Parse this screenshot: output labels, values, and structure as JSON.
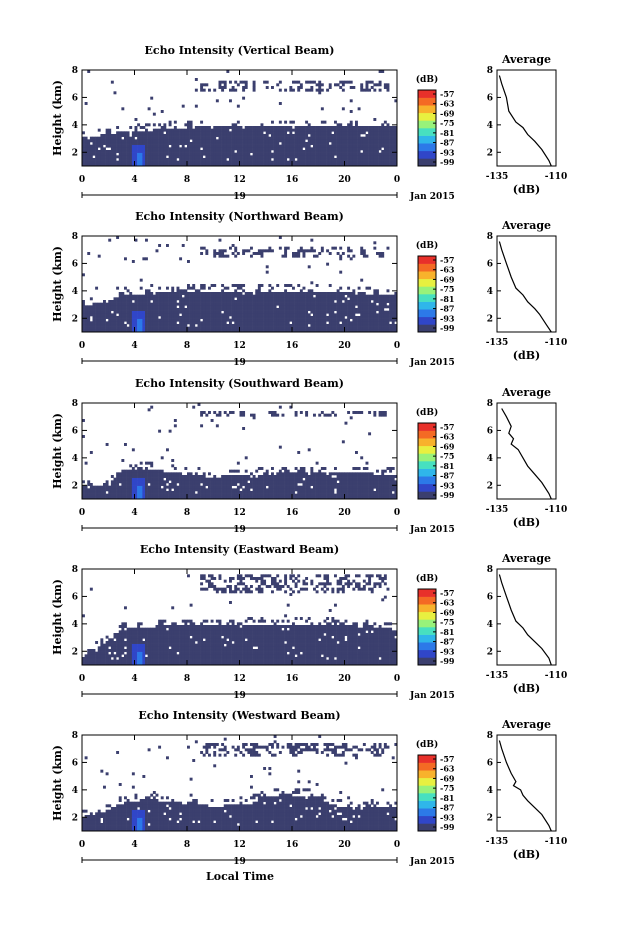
{
  "figure": {
    "xlabel": "Local Time",
    "x_ticks": [
      "0",
      "4",
      "8",
      "12",
      "16",
      "20",
      "0"
    ],
    "day_label": "19",
    "month_label": "Jan 2015",
    "avg_title": "Average",
    "avg_xlabel": "(dB)",
    "avg_x_ticks": [
      "-135",
      "-110"
    ],
    "colorbar_unit": "(dB)",
    "colorbar_ticks": [
      "-57",
      "-63",
      "-69",
      "-75",
      "-81",
      "-87",
      "-93",
      "-99"
    ],
    "colormap": [
      "#3b3f6e",
      "#3046c8",
      "#2c79e8",
      "#2fb6ea",
      "#47e0c0",
      "#98f27a",
      "#e8f040",
      "#f8b22c",
      "#f46a24",
      "#e8302a"
    ],
    "background_echo_color": "#3b3f6e"
  },
  "chart_data": [
    {
      "type": "heatmap",
      "title": "Echo Intensity (Vertical Beam)",
      "ylabel": "Height (km)",
      "xlim": [
        0,
        24
      ],
      "ylim": [
        1,
        8
      ],
      "y_ticks": [
        "2",
        "4",
        "6",
        "8"
      ],
      "echo_top_km": [
        [
          0,
          3.1
        ],
        [
          2,
          3.3
        ],
        [
          3,
          3.5
        ],
        [
          5,
          3.6
        ],
        [
          8,
          3.8
        ],
        [
          12,
          3.9
        ],
        [
          16,
          3.9
        ],
        [
          20,
          3.9
        ],
        [
          24,
          3.9
        ]
      ],
      "upper_echo_band_km": [
        6.4,
        7.3
      ],
      "avg_profile": {
        "ylim": [
          1,
          8
        ],
        "y_ticks": [
          "2",
          "4",
          "6",
          "8"
        ],
        "xlim": [
          -135,
          -110
        ],
        "x": [
          -134,
          -133,
          -131,
          -130,
          -127,
          -124,
          -122,
          -119,
          -116,
          -113,
          -112
        ],
        "y": [
          7.6,
          7.0,
          6.0,
          5.0,
          4.2,
          3.8,
          3.3,
          2.8,
          2.2,
          1.4,
          1.0
        ]
      }
    },
    {
      "type": "heatmap",
      "title": "Echo Intensity (Northward Beam)",
      "ylabel": "Height (km)",
      "xlim": [
        0,
        24
      ],
      "ylim": [
        1,
        8
      ],
      "y_ticks": [
        "2",
        "4",
        "6",
        "8"
      ],
      "echo_top_km": [
        [
          0,
          2.9
        ],
        [
          2,
          3.3
        ],
        [
          3,
          3.7
        ],
        [
          5,
          3.8
        ],
        [
          8,
          3.9
        ],
        [
          12,
          4.0
        ],
        [
          16,
          4.0
        ],
        [
          20,
          3.9
        ],
        [
          24,
          3.7
        ]
      ],
      "upper_echo_band_km": [
        6.4,
        7.3
      ],
      "avg_profile": {
        "ylim": [
          1,
          8
        ],
        "y_ticks": [
          "2",
          "4",
          "6",
          "8"
        ],
        "xlim": [
          -135,
          -110
        ],
        "x": [
          -134,
          -133,
          -131,
          -129,
          -127,
          -124,
          -122,
          -119,
          -117,
          -114,
          -112
        ],
        "y": [
          7.6,
          7.0,
          6.0,
          5.0,
          4.2,
          3.7,
          3.2,
          2.7,
          2.3,
          1.5,
          1.0
        ]
      }
    },
    {
      "type": "heatmap",
      "title": "Echo Intensity (Southward Beam)",
      "ylabel": "Height (km)",
      "xlim": [
        0,
        24
      ],
      "ylim": [
        1,
        8
      ],
      "y_ticks": [
        "2",
        "4",
        "6",
        "8"
      ],
      "echo_top_km": [
        [
          0,
          1.9
        ],
        [
          2,
          2.0
        ],
        [
          3,
          3.0
        ],
        [
          5,
          3.2
        ],
        [
          8,
          2.8
        ],
        [
          10,
          2.6
        ],
        [
          12,
          2.7
        ],
        [
          16,
          2.9
        ],
        [
          20,
          2.9
        ],
        [
          24,
          2.8
        ]
      ],
      "upper_echo_band_km": [
        7.0,
        7.5
      ],
      "avg_profile": {
        "ylim": [
          1,
          8
        ],
        "y_ticks": [
          "2",
          "4",
          "6",
          "8"
        ],
        "xlim": [
          -135,
          -110
        ],
        "x": [
          -133,
          -131,
          -129,
          -130,
          -128,
          -129,
          -126,
          -124,
          -122,
          -119,
          -116,
          -113,
          -112
        ],
        "y": [
          7.6,
          7.0,
          6.3,
          5.8,
          5.4,
          5.0,
          4.6,
          4.0,
          3.4,
          2.8,
          2.2,
          1.4,
          1.0
        ]
      }
    },
    {
      "type": "heatmap",
      "title": "Echo Intensity (Eastward Beam)",
      "ylabel": "Height (km)",
      "xlim": [
        0,
        24
      ],
      "ylim": [
        1,
        8
      ],
      "y_ticks": [
        "2",
        "4",
        "6",
        "8"
      ],
      "echo_top_km": [
        [
          0,
          1.5
        ],
        [
          2,
          2.8
        ],
        [
          3,
          3.6
        ],
        [
          5,
          3.8
        ],
        [
          8,
          3.9
        ],
        [
          12,
          3.9
        ],
        [
          16,
          4.0
        ],
        [
          20,
          3.9
        ],
        [
          24,
          3.6
        ]
      ],
      "upper_echo_band_km": [
        6.2,
        7.6
      ],
      "avg_profile": {
        "ylim": [
          1,
          8
        ],
        "y_ticks": [
          "2",
          "4",
          "6",
          "8"
        ],
        "xlim": [
          -135,
          -110
        ],
        "x": [
          -134,
          -133,
          -131,
          -129,
          -127,
          -124,
          -122,
          -119,
          -116,
          -113,
          -112
        ],
        "y": [
          7.6,
          7.0,
          6.0,
          5.0,
          4.2,
          3.7,
          3.2,
          2.7,
          2.2,
          1.5,
          1.0
        ]
      }
    },
    {
      "type": "heatmap",
      "title": "Echo Intensity (Westward Beam)",
      "ylabel": "Height (km)",
      "xlim": [
        0,
        24
      ],
      "ylim": [
        1,
        8
      ],
      "y_ticks": [
        "2",
        "4",
        "6",
        "8"
      ],
      "echo_top_km": [
        [
          0,
          2.0
        ],
        [
          2,
          2.5
        ],
        [
          3,
          3.0
        ],
        [
          5,
          3.3
        ],
        [
          8,
          3.0
        ],
        [
          10,
          2.8
        ],
        [
          13,
          3.0
        ],
        [
          14,
          3.6
        ],
        [
          18,
          3.6
        ],
        [
          19,
          2.8
        ],
        [
          24,
          2.8
        ]
      ],
      "upper_echo_band_km": [
        6.5,
        7.4
      ],
      "avg_profile": {
        "ylim": [
          1,
          8
        ],
        "y_ticks": [
          "2",
          "4",
          "6",
          "8"
        ],
        "xlim": [
          -135,
          -110
        ],
        "x": [
          -134,
          -133,
          -131,
          -129,
          -127,
          -128,
          -125,
          -124,
          -122,
          -119,
          -116,
          -113,
          -112
        ],
        "y": [
          7.6,
          7.0,
          6.0,
          5.2,
          4.6,
          4.3,
          4.0,
          3.6,
          3.2,
          2.7,
          2.2,
          1.4,
          1.0
        ]
      }
    }
  ]
}
